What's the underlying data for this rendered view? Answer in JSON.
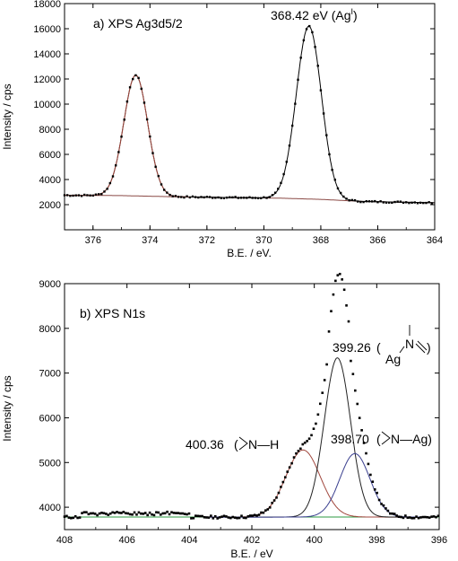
{
  "chart_data": [
    {
      "type": "line",
      "panel_label": "a) XPS Ag3d5/2",
      "xlabel": "B.E. / eV.",
      "ylabel": "Intensity / cps",
      "xlim": [
        377,
        364
      ],
      "ylim": [
        0,
        18000
      ],
      "x_reversed": true,
      "xticks": [
        376,
        374,
        372,
        370,
        368,
        366,
        364
      ],
      "yticks": [
        2000,
        4000,
        6000,
        8000,
        10000,
        12000,
        14000,
        16000,
        18000
      ],
      "peaks": [
        {
          "center": 374.5,
          "height": 12300
        },
        {
          "center": 368.42,
          "height": 16200
        }
      ],
      "background": [
        {
          "x": 377.0,
          "y": 2750
        },
        {
          "x": 375.0,
          "y": 2720
        },
        {
          "x": 373.0,
          "y": 2620
        },
        {
          "x": 371.0,
          "y": 2560
        },
        {
          "x": 369.5,
          "y": 2520
        },
        {
          "x": 368.0,
          "y": 2420
        },
        {
          "x": 366.5,
          "y": 2250
        },
        {
          "x": 364.0,
          "y": 2150
        }
      ],
      "annotations": [
        {
          "text": "368.42 eV (Ag",
          "superscript": "I",
          "suffix": ")",
          "x": 368.42
        }
      ],
      "colors": {
        "fit": "#000000",
        "data": "#000000",
        "peak1": "#a0463c",
        "background": "#8b4a46"
      }
    },
    {
      "type": "line",
      "panel_label": "b) XPS N1s",
      "xlabel": "B.E. / eV",
      "ylabel": "Intensity / cps",
      "xlim": [
        408,
        396
      ],
      "ylim": [
        3500,
        9000
      ],
      "x_reversed": true,
      "xticks": [
        408,
        406,
        404,
        402,
        400,
        398,
        396
      ],
      "yticks": [
        4000,
        5000,
        6000,
        7000,
        8000,
        9000
      ],
      "baseline": 3780,
      "components": [
        {
          "center": 400.36,
          "height": 1500,
          "label_value": "400.36",
          "label_group": "N—H",
          "color": "#a0463c"
        },
        {
          "center": 399.26,
          "height": 3560,
          "label_value": "399.26",
          "label_group": "Ag",
          "label_n": "N",
          "color": "#222222"
        },
        {
          "center": 398.7,
          "height": 1420,
          "label_value": "398.70",
          "label_group": "N—Ag)",
          "color": "#3a3f8f"
        }
      ],
      "colors": {
        "data": "#000000",
        "background": "#2e9a40"
      }
    }
  ]
}
